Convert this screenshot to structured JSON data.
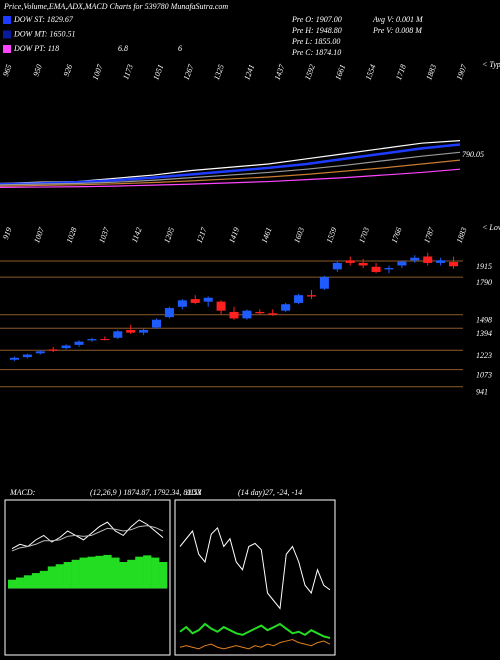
{
  "header": {
    "title": "Price,Volume,EMA,ADX,MACD Charts for 539780 MunafaSutra.com",
    "legend": [
      {
        "label": "DOW ST: 1829.67",
        "color": "#1e3cff"
      },
      {
        "label": "DOW MT: 1650.51",
        "color": "#0a1a9c"
      },
      {
        "label": "DOW PT: 118",
        "color": "#ff44ff"
      }
    ],
    "extra": [
      "6.8",
      "6"
    ],
    "info": [
      "Pre O: 1907.00",
      "Pre H: 1948.80",
      "Pre L: 1855.00",
      "Pre C: 1874.10",
      "Avg V: 0.001 M",
      "Pre V: 0.008 M"
    ]
  },
  "chart_data": [
    {
      "type": "ema",
      "label": "790.05",
      "edge_label": "< Typo",
      "top_axis_labels": [
        "965",
        "950",
        "926",
        "1007",
        "1173",
        "1051",
        "1267",
        "1325",
        "1241",
        "1437",
        "1592",
        "1661",
        "1554",
        "1718",
        "1883",
        "1907"
      ],
      "ylim": [
        1000,
        3000
      ],
      "series": [
        {
          "color": "#ffffff",
          "values": [
            1100,
            1120,
            1130,
            1180,
            1230,
            1300,
            1350,
            1400,
            1480,
            1560,
            1640,
            1720,
            1760
          ]
        },
        {
          "color": "#1e3cff",
          "values": [
            1090,
            1100,
            1120,
            1150,
            1190,
            1240,
            1290,
            1340,
            1400,
            1480,
            1560,
            1640,
            1700
          ]
        },
        {
          "color": "#999999",
          "values": [
            1080,
            1090,
            1100,
            1120,
            1150,
            1190,
            1230,
            1270,
            1320,
            1380,
            1450,
            1520,
            1580
          ]
        },
        {
          "color": "#c87a30",
          "values": [
            1060,
            1070,
            1080,
            1095,
            1115,
            1140,
            1170,
            1200,
            1240,
            1290,
            1340,
            1400,
            1460
          ]
        },
        {
          "color": "#ff44ff",
          "values": [
            1040,
            1045,
            1050,
            1060,
            1075,
            1090,
            1110,
            1130,
            1160,
            1190,
            1230,
            1270,
            1320
          ]
        }
      ]
    },
    {
      "type": "candlestick",
      "edge_label": "< Lowes",
      "top_axis_labels": [
        "919",
        "1007",
        "1028",
        "1037",
        "1142",
        "1205",
        "1217",
        "1419",
        "1461",
        "1603",
        "1559",
        "1703",
        "1766",
        "1787",
        "1883"
      ],
      "ylim": [
        900,
        2000
      ],
      "yticks": [
        941,
        1073,
        1223,
        1394,
        1498,
        1790,
        1915
      ],
      "up_color": "#1e5cff",
      "down_color": "#ff2020",
      "level_color": "#8b5a2b",
      "open": [
        1150,
        1170,
        1200,
        1230,
        1240,
        1265,
        1300,
        1310,
        1320,
        1380,
        1360,
        1400,
        1480,
        1560,
        1620,
        1600,
        1600,
        1520,
        1470,
        1520,
        1510,
        1530,
        1590,
        1650,
        1700,
        1850,
        1920,
        1900,
        1870,
        1850,
        1880,
        1920,
        1950,
        1900,
        1907
      ],
      "high": [
        1175,
        1195,
        1225,
        1250,
        1270,
        1300,
        1320,
        1330,
        1380,
        1420,
        1390,
        1470,
        1560,
        1620,
        1650,
        1640,
        1610,
        1560,
        1540,
        1540,
        1540,
        1590,
        1660,
        1690,
        1800,
        1920,
        1950,
        1930,
        1900,
        1880,
        1920,
        1960,
        1980,
        1940,
        1948.8
      ],
      "low": [
        1140,
        1160,
        1190,
        1210,
        1230,
        1250,
        1290,
        1300,
        1310,
        1350,
        1340,
        1390,
        1470,
        1540,
        1580,
        1560,
        1500,
        1460,
        1460,
        1500,
        1490,
        1520,
        1580,
        1620,
        1690,
        1830,
        1880,
        1860,
        1820,
        1820,
        1860,
        1900,
        1880,
        1880,
        1855
      ],
      "close": [
        1165,
        1190,
        1215,
        1220,
        1260,
        1290,
        1310,
        1305,
        1370,
        1360,
        1380,
        1460,
        1550,
        1610,
        1590,
        1630,
        1530,
        1470,
        1530,
        1510,
        1500,
        1580,
        1650,
        1640,
        1790,
        1900,
        1900,
        1880,
        1830,
        1860,
        1910,
        1940,
        1900,
        1920,
        1874.1
      ]
    },
    {
      "type": "macd",
      "title": "MACD:",
      "subtitle": "(12,26,9 ) 1874.87, 1792.34, 82.53",
      "ylim": [
        -150,
        200
      ],
      "histogram": {
        "color": "#22dd22",
        "values": [
          20,
          25,
          30,
          35,
          40,
          50,
          55,
          60,
          65,
          70,
          72,
          74,
          76,
          70,
          60,
          65,
          72,
          75,
          70,
          60
        ]
      },
      "series": [
        {
          "color": "#ffffff",
          "values": [
            90,
            100,
            95,
            110,
            120,
            105,
            115,
            130,
            120,
            110,
            125,
            140,
            150,
            130,
            120,
            140,
            155,
            145,
            130,
            115
          ]
        },
        {
          "color": "#bbbbbb",
          "values": [
            85,
            92,
            95,
            100,
            108,
            108,
            110,
            118,
            120,
            118,
            120,
            128,
            136,
            134,
            130,
            133,
            140,
            142,
            138,
            130
          ]
        }
      ]
    },
    {
      "type": "adx",
      "title": "ADX",
      "subtitle": "(14 day)27, -24, -14",
      "ylim": [
        0,
        100
      ],
      "series": [
        {
          "color": "#ffffff",
          "values": [
            70,
            75,
            80,
            65,
            60,
            78,
            82,
            70,
            75,
            60,
            55,
            70,
            72,
            68,
            40,
            35,
            30,
            65,
            70,
            60,
            45,
            40,
            55,
            45,
            42
          ]
        },
        {
          "color": "#22dd22",
          "values": [
            15,
            18,
            14,
            16,
            20,
            17,
            15,
            18,
            16,
            14,
            13,
            15,
            17,
            19,
            16,
            18,
            20,
            17,
            14,
            15,
            13,
            16,
            14,
            12,
            11
          ]
        },
        {
          "color": "#e08020",
          "values": [
            5,
            6,
            5,
            4,
            6,
            7,
            5,
            4,
            5,
            6,
            5,
            4,
            6,
            5,
            7,
            6,
            8,
            9,
            10,
            8,
            7,
            6,
            8,
            9,
            7
          ]
        }
      ]
    }
  ]
}
